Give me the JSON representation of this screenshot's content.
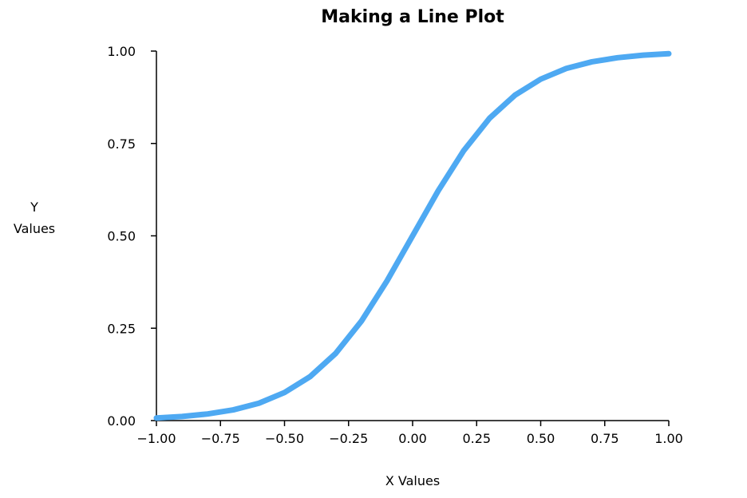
{
  "chart_data": {
    "type": "line",
    "title": "Making a Line Plot",
    "xlabel": "X Values",
    "ylabel_lines": [
      "Y",
      "Values"
    ],
    "xlim": [
      -1.0,
      1.0
    ],
    "ylim": [
      0.0,
      1.0
    ],
    "x_ticks": [
      "−1.00",
      "−0.75",
      "−0.50",
      "−0.25",
      "0.00",
      "0.25",
      "0.50",
      "0.75",
      "1.00"
    ],
    "y_ticks": [
      "0.00",
      "0.25",
      "0.50",
      "0.75",
      "1.00"
    ],
    "grid": false,
    "series": [
      {
        "x": [
          -1.0,
          -0.9,
          -0.8,
          -0.7,
          -0.6,
          -0.5,
          -0.4,
          -0.3,
          -0.2,
          -0.1,
          0.0,
          0.1,
          0.2,
          0.3,
          0.4,
          0.5,
          0.6,
          0.7,
          0.8,
          0.9,
          1.0
        ],
        "values": [
          0.007,
          0.011,
          0.018,
          0.029,
          0.047,
          0.076,
          0.119,
          0.182,
          0.269,
          0.378,
          0.5,
          0.622,
          0.731,
          0.818,
          0.881,
          0.924,
          0.953,
          0.971,
          0.982,
          0.989,
          0.993
        ],
        "color": "#4ea9f2"
      }
    ]
  }
}
